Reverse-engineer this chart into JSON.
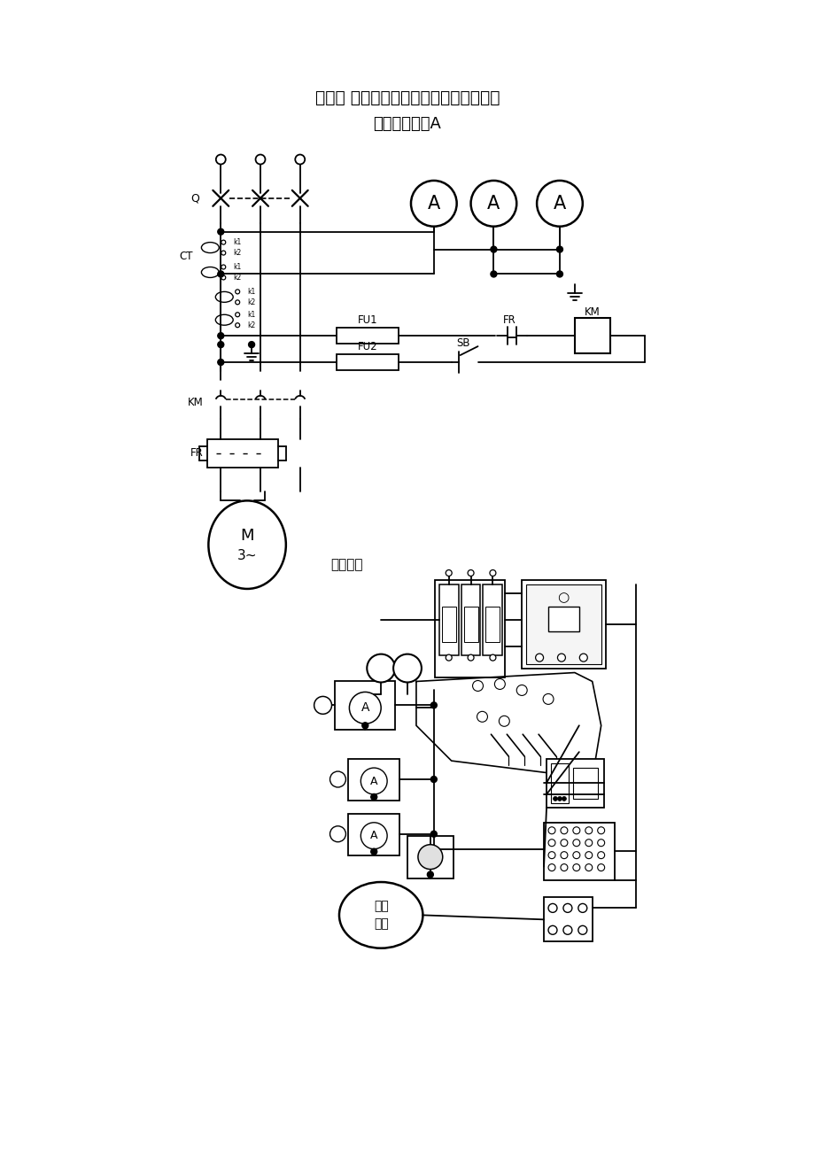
{
  "title1": "模块五 深圳市电工安全技术实训项目汇编",
  "title2": "电工安全技术A",
  "bg_color": "#ffffff",
  "label_jiexian": "接线示意"
}
